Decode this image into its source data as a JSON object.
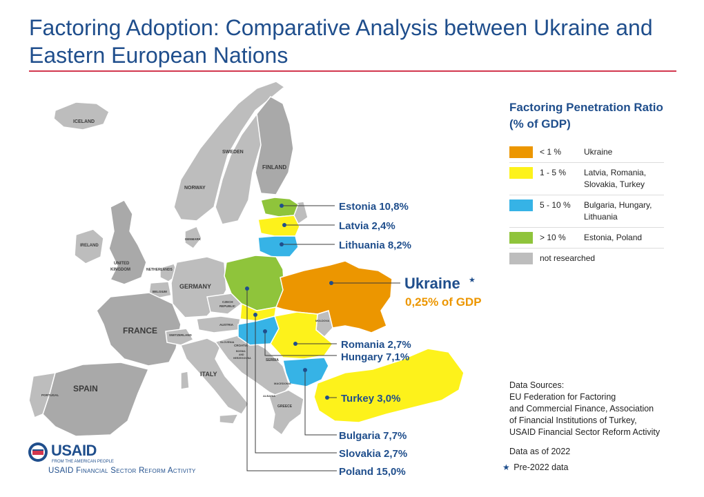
{
  "title": "Factoring Adoption: Comparative Analysis between Ukraine and Eastern European Nations",
  "colors": {
    "lt1": "#ec9600",
    "b1to5": "#fdf21b",
    "b5to10": "#36b3e6",
    "gt10": "#8fc43b",
    "not_researched": "#bdbdbd",
    "title_blue": "#1f4e8c",
    "rule_red": "#d2364d"
  },
  "legend": {
    "title": "Factoring Penetration Ratio (% of GDP)",
    "items": [
      {
        "range": "< 1 %",
        "countries": "Ukraine",
        "color": "#ec9600"
      },
      {
        "range": "1 - 5 %",
        "countries": "Latvia, Romania, Slovakia, Turkey",
        "color": "#fdf21b"
      },
      {
        "range": "5 - 10 %",
        "countries": "Bulgaria, Hungary, Lithuania",
        "color": "#36b3e6"
      },
      {
        "range": "> 10 %",
        "countries": "Estonia, Poland",
        "color": "#8fc43b"
      },
      {
        "range": "not researched",
        "countries": "",
        "color": "#bdbdbd"
      }
    ]
  },
  "callouts": {
    "estonia": "Estonia 10,8%",
    "latvia": "Latvia 2,4%",
    "lithuania": "Lithuania 8,2%",
    "ukraine_name": "Ukraine",
    "ukraine_star": "★",
    "ukraine_value": "0,25% of GDP",
    "romania": "Romania 2,7%",
    "hungary": "Hungary 7,1%",
    "turkey": "Turkey 3,0%",
    "bulgaria": "Bulgaria 7,7%",
    "slovakia": "Slovakia 2,7%",
    "poland": "Poland 15,0%"
  },
  "map_labels": {
    "iceland": "ICELAND",
    "sweden": "SWEDEN",
    "finland": "FINLAND",
    "norway": "NORWAY",
    "denmark": "DENMARK",
    "ireland": "IRELAND",
    "uk_line1": "UNITED",
    "uk_line2": "KINGDOM",
    "netherlands": "NETHERLANDS",
    "germany": "GERMANY",
    "belgium": "BELGIUM",
    "czech_line1": "CZECH",
    "czech_line2": "REPUBLIC",
    "austria": "AUSTRIA",
    "france": "FRANCE",
    "switzerland": "SWITZERLAND",
    "slovenia": "SLOVENIA",
    "croatia": "CROATIA",
    "bosnia_line1": "BOSNIA",
    "bosnia_line2": "AND",
    "bosnia_line3": "HERZEGOVINA",
    "serbia": "SERBIA",
    "moldova": "MOLDOVA",
    "italy": "ITALY",
    "spain": "SPAIN",
    "portugal": "PORTUGAL",
    "macedonia": "MACEDONIA",
    "albania": "ALBANIA",
    "greece": "GREECE"
  },
  "sources": {
    "heading": "Data Sources:",
    "line1": "EU Federation for Factoring",
    "line2": "and Commercial Finance, Association",
    "line3": "of Financial Institutions of Turkey,",
    "line4": "USAID Financial Sector Reform Activity"
  },
  "as_of": "Data as of 2022",
  "pre_note_star": "★",
  "pre_note": "Pre-2022 data",
  "logo": {
    "wordmark": "USAID",
    "tagline": "FROM THE AMERICAN PEOPLE",
    "activity": "USAID Financial Sector Reform Activity"
  }
}
